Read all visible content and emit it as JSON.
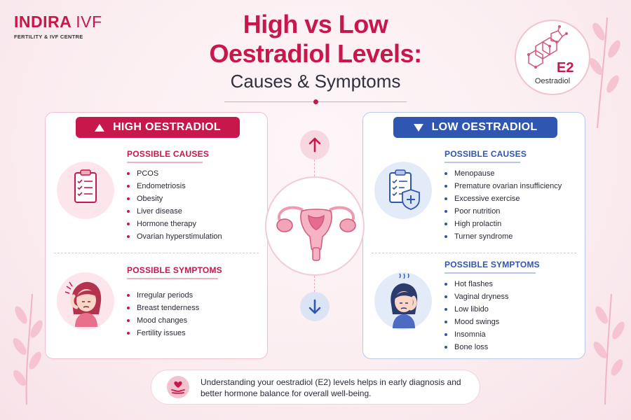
{
  "brand": {
    "name": "INDIRA IVF",
    "name_main": "INDIRA",
    "name_suffix": "IVF",
    "tagline": "FERTILITY & IVF CENTRE"
  },
  "title": {
    "line1": "High vs Low",
    "line2": "Oestradiol Levels:",
    "subtitle": "Causes & Symptoms"
  },
  "badge": {
    "symbol": "E2",
    "label": "Oestradiol"
  },
  "high": {
    "header": "HIGH OESTRADIOL",
    "causes_title": "POSSIBLE CAUSES",
    "causes": [
      "PCOS",
      "Endometriosis",
      "Obesity",
      "Liver disease",
      "Hormone therapy",
      "Ovarian hyperstimulation"
    ],
    "symptoms_title": "POSSIBLE SYMPTOMS",
    "symptoms": [
      "Irregular periods",
      "Breast tenderness",
      "Mood changes",
      "Fertility issues"
    ]
  },
  "low": {
    "header": "LOW OESTRADIOL",
    "causes_title": "POSSIBLE CAUSES",
    "causes": [
      "Menopause",
      "Premature ovarian insufficiency",
      "Excessive exercise",
      "Poor nutrition",
      "High prolactin",
      "Turner syndrome"
    ],
    "symptoms_title": "POSSIBLE SYMPTOMS",
    "symptoms": [
      "Hot flashes",
      "Vaginal dryness",
      "Low libido",
      "Mood swings",
      "Insomnia",
      "Bone loss"
    ]
  },
  "footer": {
    "text": "Understanding your oestradiol (E2) levels helps in early diagnosis and better hormone balance for overall well-being."
  },
  "icons": {
    "up_arrow": "arrow-up-icon",
    "down_arrow": "arrow-down-icon",
    "uterus": "uterus-icon",
    "checklist": "clipboard-checklist-icon",
    "shield": "shield-plus-icon",
    "heart_hand": "heart-hand-icon",
    "molecule": "molecule-icon"
  },
  "colors": {
    "primary": "#c8174b",
    "secondary": "#2f56b0",
    "background": "#fbeff2"
  }
}
